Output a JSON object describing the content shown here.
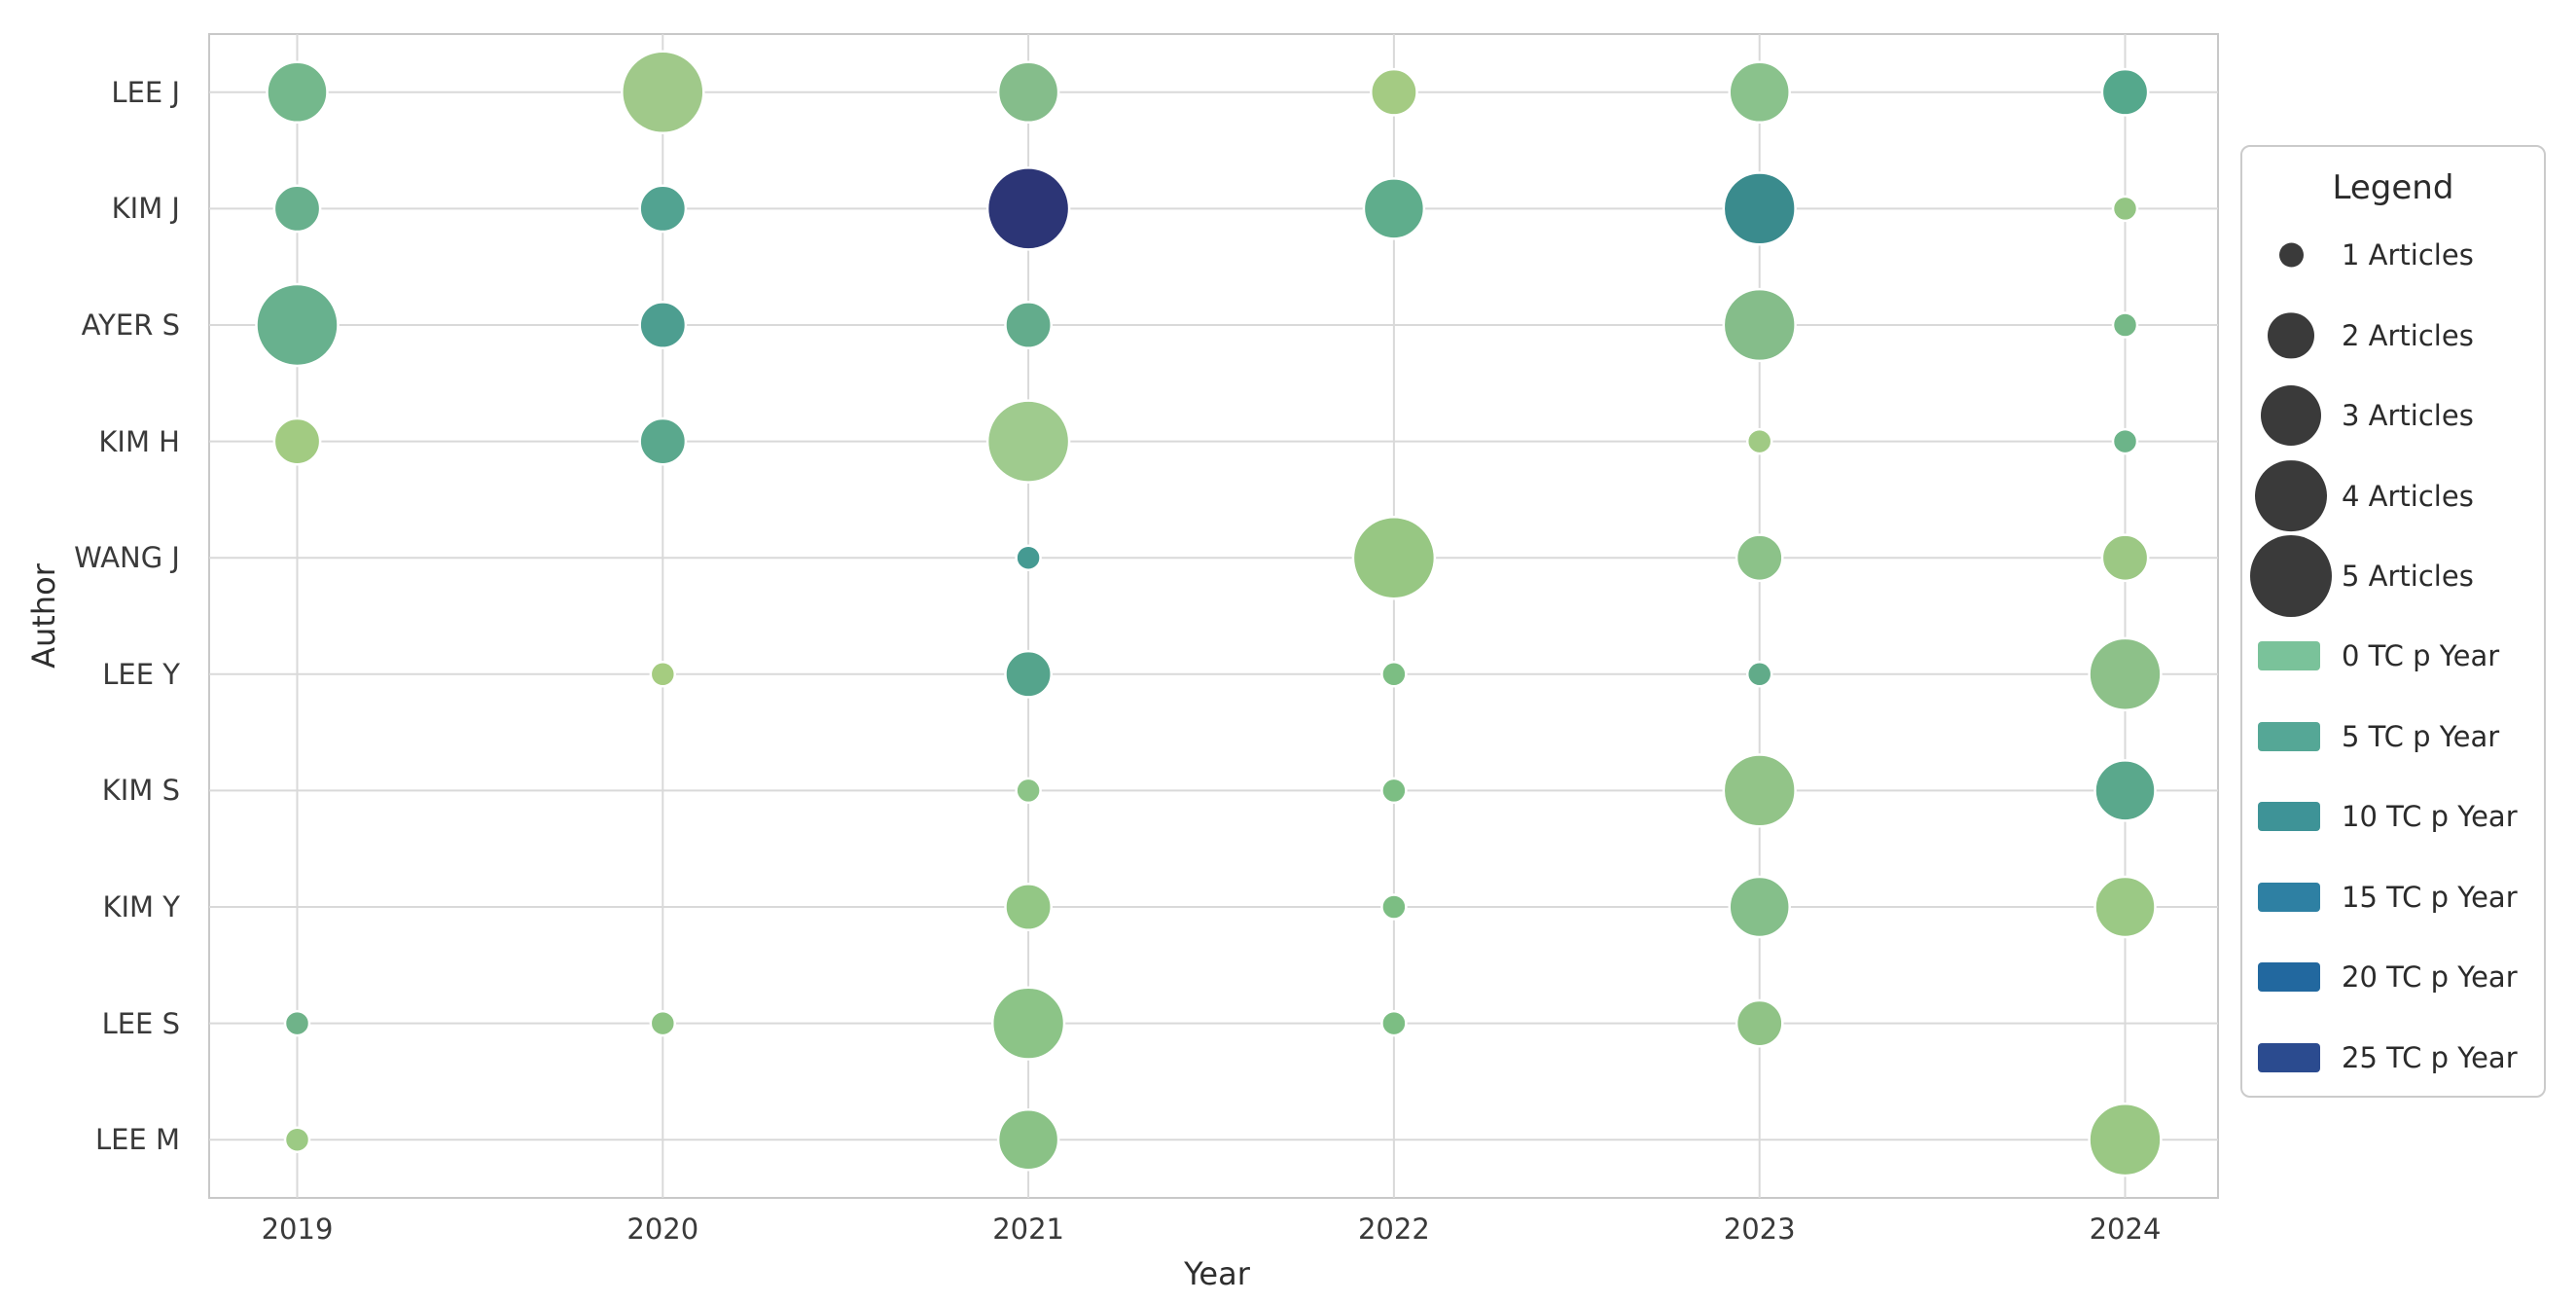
{
  "figure": {
    "background": "#ffffff",
    "grid_color": "#d9d9d9",
    "spine_color": "#c8c8c8",
    "bubble_edge_color": "#ffffff",
    "size_legend_circle_color": "#3a3a3a"
  },
  "chart_data": {
    "type": "scatter",
    "title": "",
    "xlabel": "Year",
    "ylabel": "Author",
    "x_ticks": [
      "2019",
      "2020",
      "2021",
      "2022",
      "2023",
      "2024"
    ],
    "y_categories": [
      "LEE J",
      "KIM J",
      "AYER S",
      "KIM H",
      "WANG J",
      "LEE Y",
      "KIM S",
      "KIM Y",
      "LEE S",
      "LEE M"
    ],
    "size_encoding": "Articles (1-5)",
    "color_encoding": "TC p Year (0-25)",
    "grid": true,
    "legend_position": "right",
    "points": [
      {
        "author": "LEE J",
        "year": "2019",
        "articles": 3,
        "color": "#74b88c"
      },
      {
        "author": "LEE J",
        "year": "2020",
        "articles": 5,
        "color": "#a0c98a"
      },
      {
        "author": "LEE J",
        "year": "2021",
        "articles": 3,
        "color": "#85bd8b"
      },
      {
        "author": "LEE J",
        "year": "2022",
        "articles": 2,
        "color": "#a4cb83"
      },
      {
        "author": "LEE J",
        "year": "2023",
        "articles": 3,
        "color": "#8ac28c"
      },
      {
        "author": "LEE J",
        "year": "2024",
        "articles": 2,
        "color": "#55a88c"
      },
      {
        "author": "KIM J",
        "year": "2019",
        "articles": 2,
        "color": "#68b08d"
      },
      {
        "author": "KIM J",
        "year": "2020",
        "articles": 2,
        "color": "#52a391"
      },
      {
        "author": "KIM J",
        "year": "2021",
        "articles": 5,
        "color": "#2c3576"
      },
      {
        "author": "KIM J",
        "year": "2022",
        "articles": 3,
        "color": "#5fad8c"
      },
      {
        "author": "KIM J",
        "year": "2023",
        "articles": 4,
        "color": "#3a8b8d"
      },
      {
        "author": "KIM J",
        "year": "2024",
        "articles": 1,
        "color": "#93c583"
      },
      {
        "author": "AYER S",
        "year": "2019",
        "articles": 5,
        "color": "#68b18e"
      },
      {
        "author": "AYER S",
        "year": "2020",
        "articles": 2,
        "color": "#4d9e90"
      },
      {
        "author": "AYER S",
        "year": "2021",
        "articles": 2,
        "color": "#63ac8c"
      },
      {
        "author": "AYER S",
        "year": "2023",
        "articles": 4,
        "color": "#85bd8a"
      },
      {
        "author": "AYER S",
        "year": "2024",
        "articles": 1,
        "color": "#76b987"
      },
      {
        "author": "KIM H",
        "year": "2019",
        "articles": 2,
        "color": "#a2cb82"
      },
      {
        "author": "KIM H",
        "year": "2020",
        "articles": 2,
        "color": "#5aa88d"
      },
      {
        "author": "KIM H",
        "year": "2021",
        "articles": 5,
        "color": "#9fcb8e"
      },
      {
        "author": "KIM H",
        "year": "2023",
        "articles": 1,
        "color": "#a0ca84"
      },
      {
        "author": "KIM H",
        "year": "2024",
        "articles": 1,
        "color": "#6cb489"
      },
      {
        "author": "WANG J",
        "year": "2021",
        "articles": 1,
        "color": "#459a92"
      },
      {
        "author": "WANG J",
        "year": "2022",
        "articles": 5,
        "color": "#97c783"
      },
      {
        "author": "WANG J",
        "year": "2023",
        "articles": 2,
        "color": "#8cc289"
      },
      {
        "author": "WANG J",
        "year": "2024",
        "articles": 2,
        "color": "#9cc884"
      },
      {
        "author": "LEE Y",
        "year": "2020",
        "articles": 1,
        "color": "#a5cc80"
      },
      {
        "author": "LEE Y",
        "year": "2021",
        "articles": 2,
        "color": "#55a48c"
      },
      {
        "author": "LEE Y",
        "year": "2022",
        "articles": 1,
        "color": "#7cbe83"
      },
      {
        "author": "LEE Y",
        "year": "2023",
        "articles": 1,
        "color": "#61ab89"
      },
      {
        "author": "LEE Y",
        "year": "2024",
        "articles": 4,
        "color": "#8dc189"
      },
      {
        "author": "KIM S",
        "year": "2021",
        "articles": 1,
        "color": "#8cc487"
      },
      {
        "author": "KIM S",
        "year": "2022",
        "articles": 1,
        "color": "#7cbe83"
      },
      {
        "author": "KIM S",
        "year": "2023",
        "articles": 4,
        "color": "#92c488"
      },
      {
        "author": "KIM S",
        "year": "2024",
        "articles": 3,
        "color": "#5aa88c"
      },
      {
        "author": "KIM Y",
        "year": "2021",
        "articles": 2,
        "color": "#93c785"
      },
      {
        "author": "KIM Y",
        "year": "2022",
        "articles": 1,
        "color": "#7cbe83"
      },
      {
        "author": "KIM Y",
        "year": "2023",
        "articles": 3,
        "color": "#85bf8a"
      },
      {
        "author": "KIM Y",
        "year": "2024",
        "articles": 3,
        "color": "#9bc985"
      },
      {
        "author": "LEE S",
        "year": "2019",
        "articles": 1,
        "color": "#6fb389"
      },
      {
        "author": "LEE S",
        "year": "2020",
        "articles": 1,
        "color": "#8dc483"
      },
      {
        "author": "LEE S",
        "year": "2021",
        "articles": 4,
        "color": "#8cc487"
      },
      {
        "author": "LEE S",
        "year": "2022",
        "articles": 1,
        "color": "#7cbe83"
      },
      {
        "author": "LEE S",
        "year": "2023",
        "articles": 2,
        "color": "#90c386"
      },
      {
        "author": "LEE M",
        "year": "2019",
        "articles": 1,
        "color": "#9cca84"
      },
      {
        "author": "LEE M",
        "year": "2021",
        "articles": 3,
        "color": "#8ac286"
      },
      {
        "author": "LEE M",
        "year": "2024",
        "articles": 4,
        "color": "#9ac884"
      }
    ]
  },
  "legend": {
    "title": "Legend",
    "size_items": [
      {
        "label": "1 Articles",
        "articles": 1
      },
      {
        "label": "2 Articles",
        "articles": 2
      },
      {
        "label": "3 Articles",
        "articles": 3
      },
      {
        "label": "4 Articles",
        "articles": 4
      },
      {
        "label": "5 Articles",
        "articles": 5
      }
    ],
    "color_items": [
      {
        "label": "0 TC p Year",
        "color": "#7ac29a"
      },
      {
        "label": "5 TC p Year",
        "color": "#55a796"
      },
      {
        "label": "10 TC p Year",
        "color": "#3e9397"
      },
      {
        "label": "15 TC p Year",
        "color": "#2e80a3"
      },
      {
        "label": "20 TC p Year",
        "color": "#22689f"
      },
      {
        "label": "25 TC p Year",
        "color": "#2b4b8f"
      }
    ]
  }
}
